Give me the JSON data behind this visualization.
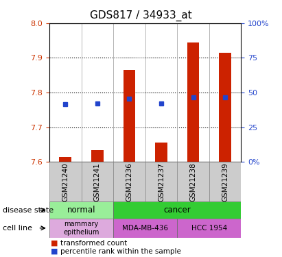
{
  "title": "GDS817 / 34933_at",
  "samples": [
    "GSM21240",
    "GSM21241",
    "GSM21236",
    "GSM21237",
    "GSM21238",
    "GSM21239"
  ],
  "bar_values": [
    7.615,
    7.635,
    7.865,
    7.655,
    7.945,
    7.915
  ],
  "bar_bottom": 7.6,
  "percentile_values": [
    7.767,
    7.769,
    7.782,
    7.769,
    7.787,
    7.787
  ],
  "ylim": [
    7.6,
    8.0
  ],
  "y_ticks": [
    7.6,
    7.7,
    7.8,
    7.9,
    8.0
  ],
  "y2_ticks": [
    0,
    25,
    50,
    75,
    100
  ],
  "bar_color": "#cc2200",
  "percentile_color": "#2244cc",
  "title_fontsize": 11,
  "disease_color_normal": "#99ee99",
  "disease_color_cancer": "#33cc33",
  "cell_normal_color": "#ddaadd",
  "cell_cancer_color": "#cc66cc",
  "bg_gray": "#cccccc"
}
